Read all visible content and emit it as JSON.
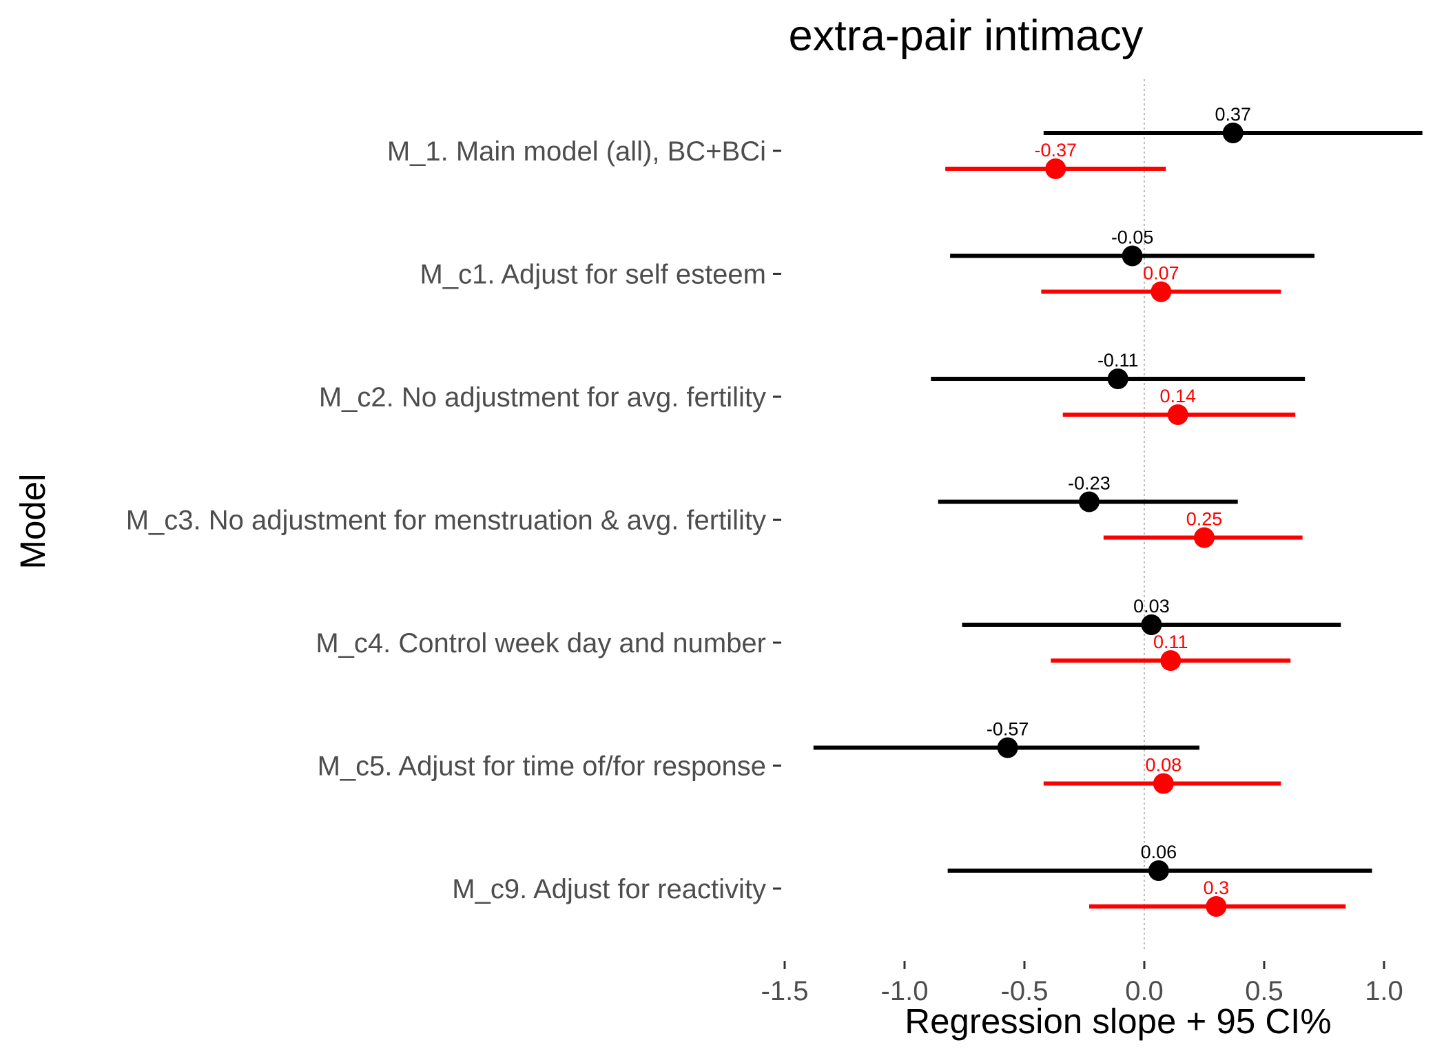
{
  "chart_data": {
    "type": "scatter",
    "title": "extra-pair intimacy",
    "xlabel": "Regression slope + 95 CI%",
    "ylabel": "Model",
    "xlim": [
      -1.5,
      1.0
    ],
    "x_ticks": [
      -1.5,
      -1.0,
      -0.5,
      0.0,
      0.5,
      1.0
    ],
    "x_tick_labels": [
      "-1.5",
      "-1.0",
      "-0.5",
      "0.0",
      "0.5",
      "1.0"
    ],
    "categories": [
      "M_1. Main model (all), BC+BCi",
      "M_c1. Adjust for self esteem",
      "M_c2. No adjustment for avg. fertility",
      "M_c3. No adjustment for menstruation & avg. fertility",
      "M_c4. Control week day and number",
      "M_c5. Adjust for time of/for response",
      "M_c9. Adjust for reactivity"
    ],
    "reference_line": 0,
    "grid": false,
    "legend": "none",
    "series": [
      {
        "color": "#000000",
        "estimates": [
          0.37,
          -0.05,
          -0.11,
          -0.23,
          0.03,
          -0.57,
          0.06
        ],
        "labels": [
          "0.37",
          "-0.05",
          "-0.11",
          "-0.23",
          "0.03",
          "-0.57",
          "0.06"
        ],
        "ci_low": [
          -0.42,
          -0.81,
          -0.89,
          -0.86,
          -0.76,
          -1.38,
          -0.82
        ],
        "ci_high": [
          1.16,
          0.71,
          0.67,
          0.39,
          0.82,
          0.23,
          0.95
        ]
      },
      {
        "color": "#ff0000",
        "estimates": [
          -0.37,
          0.07,
          0.14,
          0.25,
          0.11,
          0.08,
          0.3
        ],
        "labels": [
          "-0.37",
          "0.07",
          "0.14",
          "0.25",
          "0.11",
          "0.08",
          "0.3"
        ],
        "ci_low": [
          -0.83,
          -0.43,
          -0.34,
          -0.17,
          -0.39,
          -0.42,
          -0.23
        ],
        "ci_high": [
          0.09,
          0.57,
          0.63,
          0.66,
          0.61,
          0.57,
          0.84
        ]
      }
    ]
  }
}
